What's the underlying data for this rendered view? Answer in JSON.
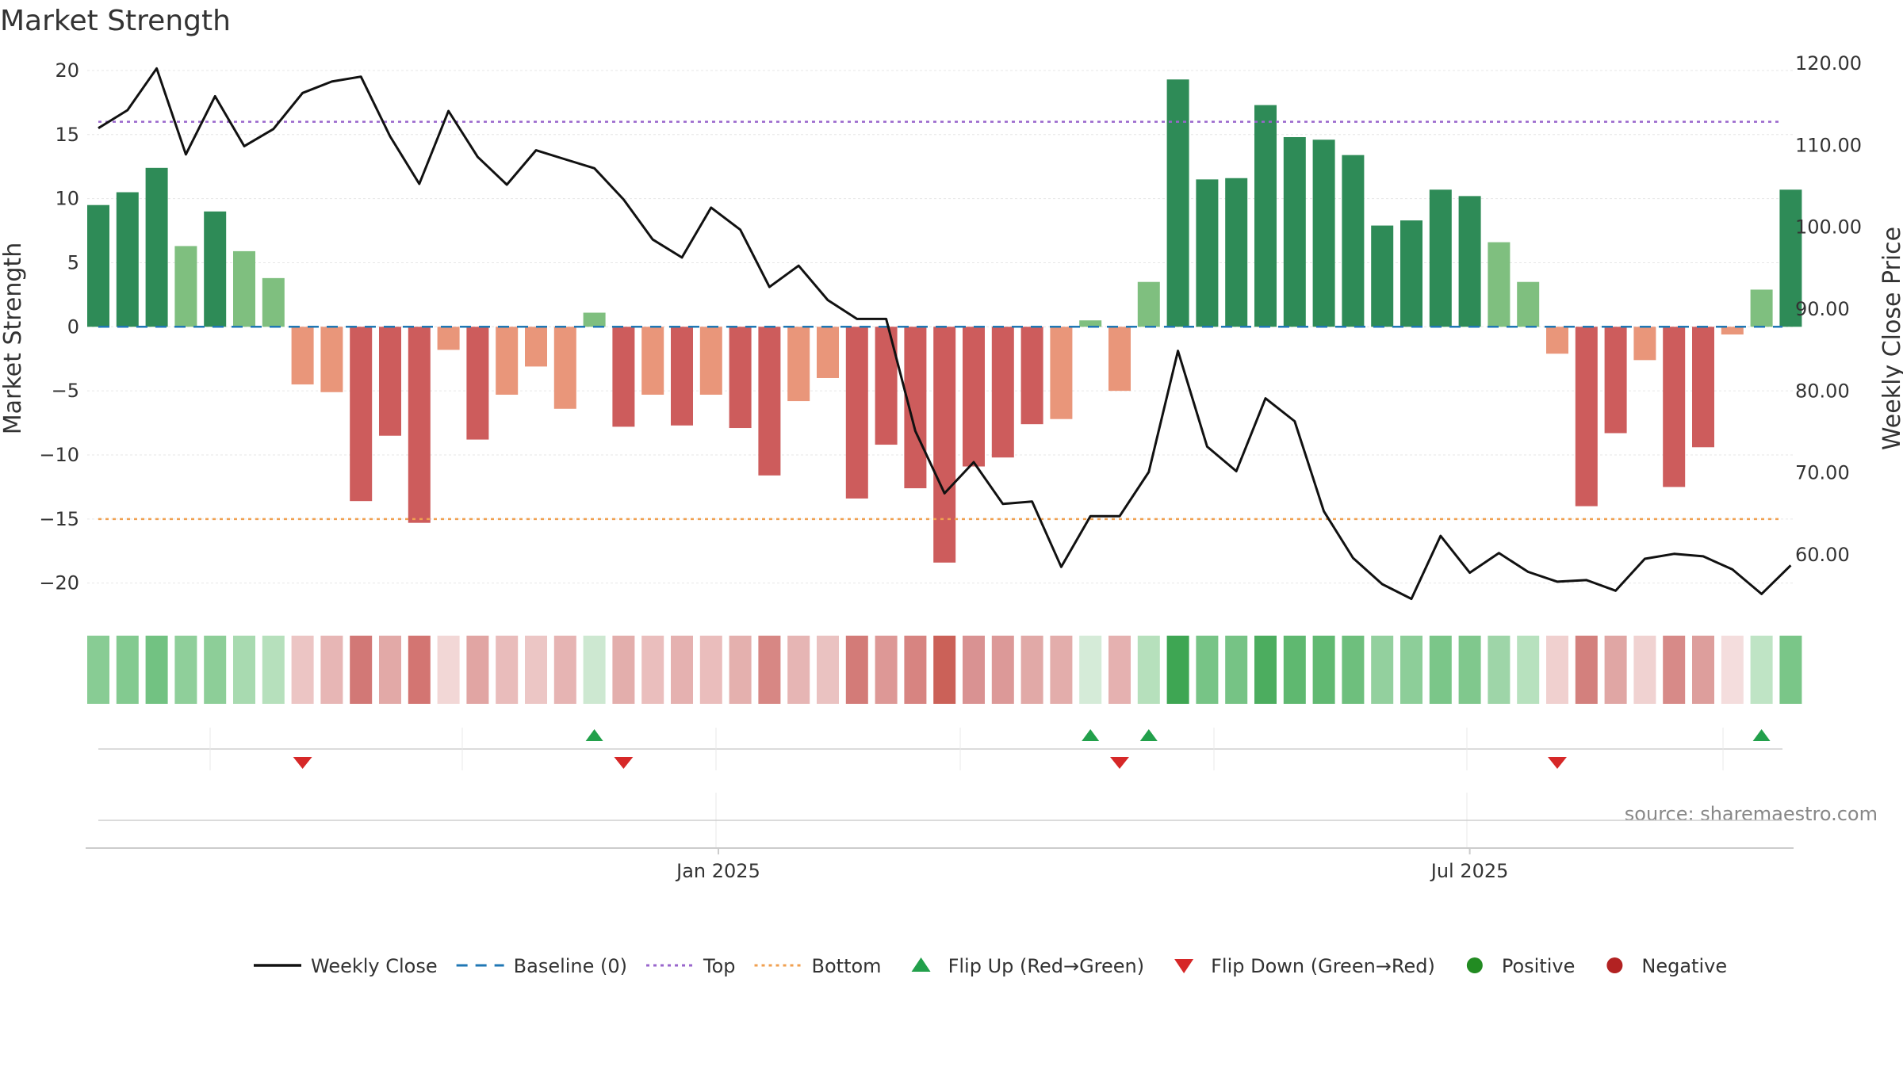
{
  "chart_data": {
    "type": "bar",
    "title": "Market Strength",
    "ylabel_left": "Market Strength",
    "ylabel_right": "Weekly Close Price",
    "y_left_ticks": [
      20,
      15,
      10,
      5,
      0,
      -5,
      -10,
      -15,
      -20
    ],
    "y_left_tick_labels": [
      "20",
      "15",
      "10",
      "5",
      "0",
      "−5",
      "−10",
      "−15",
      "−20"
    ],
    "y_left_range": [
      -22,
      20.8
    ],
    "y_right_ticks": [
      120,
      110,
      100,
      90,
      80,
      70,
      60
    ],
    "y_right_tick_labels": [
      "120.00",
      "110.00",
      "100.00",
      "90.00",
      "80.00",
      "70.00",
      "60.00"
    ],
    "y_right_range": [
      53.4,
      120.4
    ],
    "x_tick_labels": [
      {
        "label": "Jan 2025",
        "week_index": 21.25
      },
      {
        "label": "Jul 2025",
        "week_index": 47.0
      }
    ],
    "reference_lines": {
      "top": 16,
      "bottom": -15,
      "baseline": 0
    },
    "strength": [
      9.5,
      10.5,
      12.4,
      6.3,
      9.0,
      5.9,
      3.8,
      -4.5,
      -5.1,
      -13.6,
      -8.5,
      -15.3,
      -1.8,
      -8.8,
      -5.3,
      -3.1,
      -6.4,
      1.1,
      -7.8,
      -5.3,
      -7.7,
      -5.3,
      -7.9,
      -11.6,
      -5.8,
      -4.0,
      -13.4,
      -9.2,
      -12.6,
      -18.4,
      -10.9,
      -10.2,
      -7.6,
      -7.2,
      0.5,
      -5.0,
      3.5,
      19.3,
      11.5,
      11.6,
      17.3,
      14.8,
      14.6,
      13.4,
      7.9,
      8.3,
      10.7,
      10.2,
      6.6,
      3.5,
      -2.1,
      -14.0,
      -8.3,
      -2.6,
      -12.5,
      -9.4,
      -0.6,
      2.9,
      10.7
    ],
    "weekly_close": [
      112.1,
      114.3,
      119.4,
      108.9,
      116.0,
      109.9,
      112.0,
      116.4,
      117.8,
      118.4,
      111.1,
      105.3,
      114.2,
      108.6,
      105.2,
      109.4,
      108.3,
      107.2,
      103.4,
      98.5,
      96.3,
      102.4,
      99.7,
      92.7,
      95.3,
      91.1,
      88.8,
      88.8,
      75.1,
      67.5,
      71.3,
      66.2,
      66.5,
      58.5,
      64.7,
      64.7,
      70.1,
      84.9,
      73.2,
      70.2,
      79.1,
      76.3,
      65.3,
      59.6,
      56.4,
      54.6,
      62.3,
      57.8,
      60.2,
      57.9,
      56.7,
      56.9,
      55.6,
      59.5,
      60.1,
      59.8,
      58.2,
      55.2,
      58.7
    ],
    "heat_strip_colors": [
      "#88cc94",
      "#83ca90",
      "#72c282",
      "#8fcf9a",
      "#8dce98",
      "#a8dab0",
      "#b6e0bc",
      "#ecc5c4",
      "#e7b6b5",
      "#d27876",
      "#e2a9a7",
      "#d37572",
      "#f2d7d6",
      "#e1a5a3",
      "#e9bcbb",
      "#ecc6c5",
      "#e6b4b3",
      "#cde8d1",
      "#e3aeac",
      "#eabebd",
      "#e5b1b0",
      "#eabdbc",
      "#e4b0ae",
      "#d78784",
      "#e6b5b4",
      "#eac2c1",
      "#d37b78",
      "#dd9896",
      "#d78481",
      "#cb6158",
      "#d99292",
      "#dc9998",
      "#e1a9a7",
      "#e3adab",
      "#d5ebd8",
      "#e5b1b0",
      "#b6e0bc",
      "#3ea653",
      "#77c486",
      "#76c385",
      "#4cad5f",
      "#5fb870",
      "#61b972",
      "#6ebf7d",
      "#93d09e",
      "#8dce99",
      "#7bc689",
      "#80c88d",
      "#9ed5a8",
      "#b7e1be",
      "#f0d0cf",
      "#d3807d",
      "#e0a6a4",
      "#f0d2d1",
      "#d78a88",
      "#dd9e9c",
      "#f4dddd",
      "#bfe4c5",
      "#7ac688"
    ],
    "flips_up": [
      17,
      34,
      36,
      57
    ],
    "flips_down": [
      7,
      18,
      35,
      50
    ],
    "dot_colors": {
      "positive": "#2e8b57",
      "negative": "#cd5c5c",
      "positive_light": "#7fbf7f",
      "negative_light": "#e9967a"
    },
    "legend": [
      {
        "label": "Weekly Close",
        "kind": "line",
        "color": "#111111"
      },
      {
        "label": "Baseline (0)",
        "kind": "dash",
        "color": "#1f77b4"
      },
      {
        "label": "Top",
        "kind": "dot",
        "color": "#9966cc"
      },
      {
        "label": "Bottom",
        "kind": "dot",
        "color": "#f0a050"
      },
      {
        "label": "Flip Up (Red→Green)",
        "kind": "tri-up",
        "color": "#22a04b"
      },
      {
        "label": "Flip Down (Green→Red)",
        "kind": "tri-down",
        "color": "#d62828"
      },
      {
        "label": "Positive",
        "kind": "circle",
        "color": "#228b22"
      },
      {
        "label": "Negative",
        "kind": "circle",
        "color": "#b22222"
      }
    ],
    "source": "source: sharemaestro.com",
    "grid": true
  }
}
